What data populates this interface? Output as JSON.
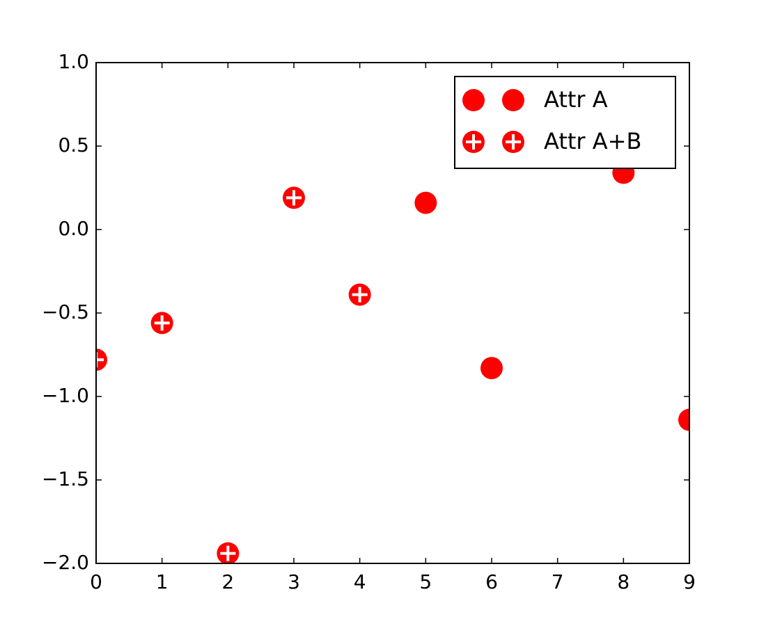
{
  "chart_data": {
    "type": "scatter",
    "series": [
      {
        "name": "Attr A",
        "color": "#ff0000",
        "marker": "circle",
        "x": [
          5,
          6,
          8,
          9
        ],
        "values": [
          0.16,
          -0.83,
          0.34,
          -1.14
        ]
      },
      {
        "name": "Attr A+B",
        "color": "#ff0000",
        "marker": "circle-plus",
        "x": [
          0,
          1,
          2,
          3,
          4
        ],
        "values": [
          -0.78,
          -0.56,
          -1.94,
          0.19,
          -0.39
        ]
      }
    ],
    "xlim": [
      0,
      9
    ],
    "xticks": [
      0,
      1,
      2,
      3,
      4,
      5,
      6,
      7,
      8,
      9
    ],
    "ylim": [
      -2.0,
      1.0
    ],
    "yticks": [
      {
        "value": -2.0,
        "label": "−2.0"
      },
      {
        "value": -1.5,
        "label": "−1.5"
      },
      {
        "value": -1.0,
        "label": "−1.0"
      },
      {
        "value": -0.5,
        "label": "−0.5"
      },
      {
        "value": 0.0,
        "label": "0.0"
      },
      {
        "value": 0.5,
        "label": "0.5"
      },
      {
        "value": 1.0,
        "label": "1.0"
      }
    ],
    "legend": "upper right",
    "grid": false
  }
}
